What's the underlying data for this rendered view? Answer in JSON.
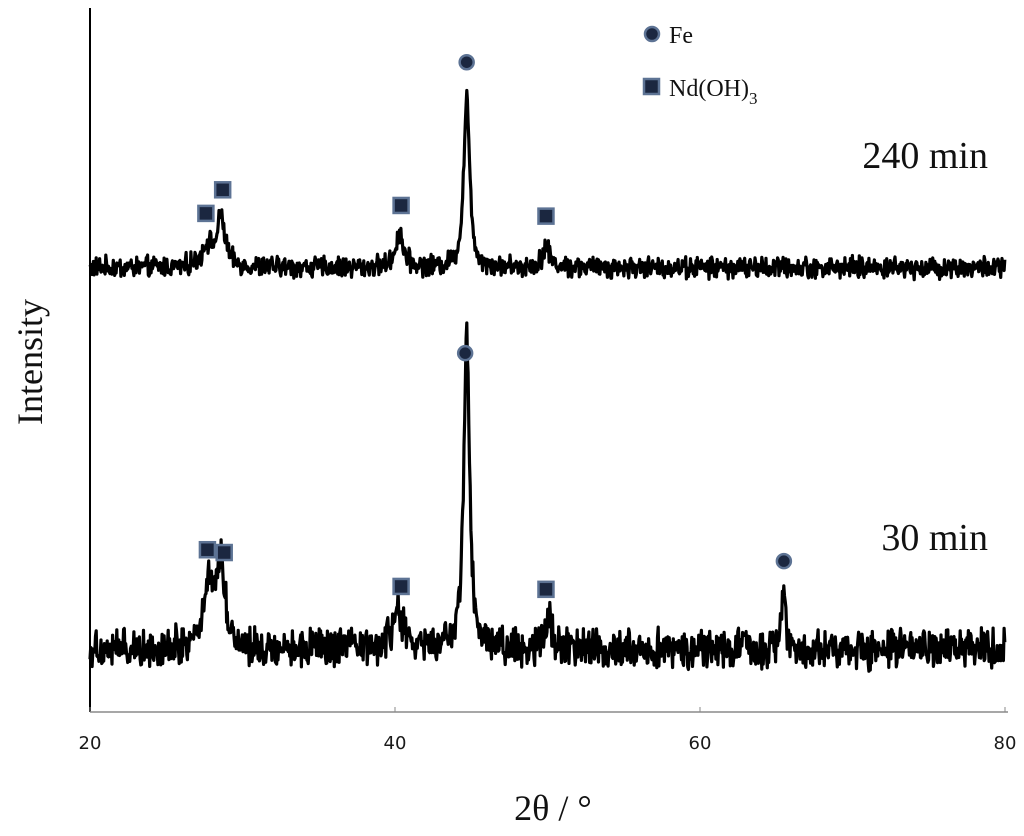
{
  "chart_data": {
    "type": "line",
    "xlabel": "2θ / °",
    "ylabel": "Intensity",
    "xlim": [
      20,
      80
    ],
    "xticks": [
      "20",
      "40",
      "60",
      "80"
    ],
    "grid": false,
    "line_color": "#000000",
    "marker_color": "#1b2740",
    "marker_edge_color": "#5d7394",
    "legend": {
      "position": "top-center",
      "entries": [
        {
          "name": "Fe",
          "marker": "circle"
        },
        {
          "name": "Nd(OH)",
          "subscript": "3",
          "marker": "square"
        }
      ]
    },
    "series": [
      {
        "name": "240 min",
        "baseline": 0.06,
        "noise": 0.09,
        "peaks": [
          {
            "x": 27.7,
            "height": 0.12,
            "width": 0.45
          },
          {
            "x": 28.6,
            "height": 0.28,
            "width": 0.3
          },
          {
            "x": 40.3,
            "height": 0.2,
            "width": 0.3
          },
          {
            "x": 44.7,
            "height": 1.0,
            "width": 0.22
          },
          {
            "x": 49.9,
            "height": 0.12,
            "width": 0.3
          }
        ],
        "markers": [
          {
            "x": 27.6,
            "phase": "Nd(OH)3",
            "marker": "square"
          },
          {
            "x": 28.7,
            "phase": "Nd(OH)3",
            "marker": "square"
          },
          {
            "x": 40.4,
            "phase": "Nd(OH)3",
            "marker": "square"
          },
          {
            "x": 44.7,
            "phase": "Fe",
            "marker": "circle"
          },
          {
            "x": 49.9,
            "phase": "Nd(OH)3",
            "marker": "square"
          }
        ]
      },
      {
        "name": "30 min",
        "baseline": 0.06,
        "noise": 0.09,
        "peaks": [
          {
            "x": 27.8,
            "height": 0.2,
            "width": 0.45
          },
          {
            "x": 28.6,
            "height": 0.25,
            "width": 0.3
          },
          {
            "x": 40.2,
            "height": 0.13,
            "width": 0.35
          },
          {
            "x": 44.7,
            "height": 1.0,
            "width": 0.22
          },
          {
            "x": 50.0,
            "height": 0.1,
            "width": 0.3
          },
          {
            "x": 65.5,
            "height": 0.18,
            "width": 0.15
          }
        ],
        "markers": [
          {
            "x": 27.7,
            "phase": "Nd(OH)3",
            "marker": "square"
          },
          {
            "x": 28.8,
            "phase": "Nd(OH)3",
            "marker": "square"
          },
          {
            "x": 40.4,
            "phase": "Nd(OH)3",
            "marker": "square"
          },
          {
            "x": 44.6,
            "phase": "Fe",
            "marker": "circle"
          },
          {
            "x": 49.9,
            "phase": "Nd(OH)3",
            "marker": "square"
          },
          {
            "x": 65.5,
            "phase": "Fe",
            "marker": "circle"
          }
        ]
      }
    ]
  }
}
